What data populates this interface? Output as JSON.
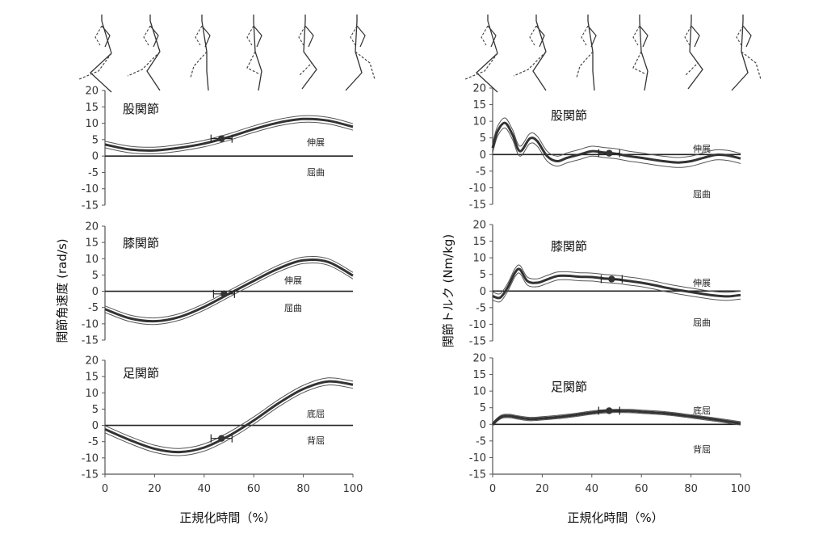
{
  "chart_data": [
    {
      "type": "line",
      "title": "股関節",
      "ylabel": "関節角速度 (rad/s)",
      "xlabel": "",
      "xlim": [
        0,
        100
      ],
      "ylim": [
        -15,
        20
      ],
      "yticks": [
        "20",
        "15",
        "10",
        "5",
        "0",
        "-5",
        "-10",
        "-15"
      ],
      "xticks": [],
      "annotations": [
        "伸展",
        "屈曲"
      ],
      "x": [
        0,
        10,
        20,
        30,
        40,
        50,
        60,
        70,
        80,
        90,
        100
      ],
      "series": [
        {
          "values": [
            3.5,
            2.0,
            1.7,
            2.5,
            3.8,
            5.8,
            8.2,
            10.2,
            11.3,
            10.8,
            8.9
          ]
        }
      ],
      "band": 1.0,
      "marker": {
        "x": 47,
        "y": 5.3
      }
    },
    {
      "type": "line",
      "title": "膝関節",
      "ylabel": "",
      "xlabel": "",
      "xlim": [
        0,
        100
      ],
      "ylim": [
        -15,
        20
      ],
      "yticks": [
        "20",
        "15",
        "10",
        "5",
        "0",
        "-5",
        "-10",
        "-15"
      ],
      "xticks": [],
      "annotations": [
        "伸展",
        "屈曲"
      ],
      "x": [
        0,
        10,
        20,
        30,
        40,
        50,
        60,
        70,
        80,
        90,
        100
      ],
      "series": [
        {
          "values": [
            -5.5,
            -8.3,
            -9.2,
            -7.9,
            -4.8,
            -0.8,
            3.2,
            7.0,
            9.5,
            9.0,
            4.8
          ]
        }
      ],
      "band": 1.0,
      "marker": {
        "x": 48,
        "y": -0.8
      }
    },
    {
      "type": "line",
      "title": "足関節",
      "ylabel": "",
      "xlabel": "正規化時間（%）",
      "xlim": [
        0,
        100
      ],
      "ylim": [
        -15,
        20
      ],
      "yticks": [
        "20",
        "15",
        "10",
        "5",
        "0",
        "-5",
        "-10",
        "-15"
      ],
      "xticks": [
        "0",
        "20",
        "40",
        "60",
        "80",
        "100"
      ],
      "annotations": [
        "底屈",
        "背屈"
      ],
      "x": [
        0,
        10,
        20,
        30,
        40,
        50,
        60,
        70,
        80,
        90,
        100
      ],
      "series": [
        {
          "values": [
            -1.2,
            -4.5,
            -7.2,
            -8.2,
            -6.8,
            -3.2,
            1.5,
            6.8,
            11.2,
            13.5,
            12.5
          ]
        }
      ],
      "band": 1.1,
      "marker": {
        "x": 47,
        "y": -4.0
      }
    },
    {
      "type": "line",
      "title": "股関節",
      "ylabel": "関節トルク (Nm/kg)",
      "xlabel": "",
      "xlim": [
        0,
        100
      ],
      "ylim": [
        -15,
        20
      ],
      "yticks": [
        "20",
        "15",
        "10",
        "5",
        "0",
        "-5",
        "-10",
        "-15"
      ],
      "xticks": [],
      "annotations": [
        "伸展",
        "屈曲"
      ],
      "x": [
        0,
        2,
        5,
        8,
        11,
        15,
        18,
        22,
        26,
        30,
        35,
        40,
        45,
        50,
        55,
        60,
        65,
        70,
        75,
        80,
        85,
        90,
        95,
        100
      ],
      "series": [
        {
          "values": [
            2.0,
            7.0,
            9.5,
            6.0,
            1.0,
            4.8,
            4.0,
            -0.5,
            -2.0,
            -1.0,
            0.0,
            1.0,
            0.6,
            0.2,
            -0.5,
            -1.0,
            -1.6,
            -2.1,
            -2.4,
            -2.0,
            -1.0,
            -0.1,
            -0.3,
            -1.2
          ]
        }
      ],
      "band": 1.5,
      "marker": {
        "x": 47,
        "y": 0.4
      }
    },
    {
      "type": "line",
      "title": "膝関節",
      "ylabel": "",
      "xlabel": "",
      "xlim": [
        0,
        100
      ],
      "ylim": [
        -15,
        20
      ],
      "yticks": [
        "20",
        "15",
        "10",
        "5",
        "0",
        "-5",
        "-10",
        "-15"
      ],
      "xticks": [],
      "annotations": [
        "伸展",
        "屈曲"
      ],
      "x": [
        0,
        3,
        6,
        9,
        11,
        14,
        18,
        22,
        26,
        30,
        35,
        40,
        45,
        50,
        55,
        60,
        65,
        70,
        75,
        80,
        85,
        90,
        95,
        100
      ],
      "series": [
        {
          "values": [
            -1.5,
            -2.0,
            1.0,
            5.5,
            6.5,
            3.0,
            2.5,
            3.5,
            4.5,
            4.6,
            4.3,
            4.2,
            3.8,
            3.5,
            3.0,
            2.5,
            1.8,
            1.0,
            0.3,
            -0.3,
            -0.9,
            -1.4,
            -1.6,
            -1.2
          ]
        }
      ],
      "band": 1.2,
      "marker": {
        "x": 48,
        "y": 3.6
      }
    },
    {
      "type": "line",
      "title": "足関節",
      "ylabel": "",
      "xlabel": "正規化時間（%）",
      "xlim": [
        0,
        100
      ],
      "ylim": [
        -15,
        20
      ],
      "yticks": [
        "20",
        "15",
        "10",
        "5",
        "0",
        "-5",
        "-10",
        "-15"
      ],
      "xticks": [
        "0",
        "20",
        "40",
        "60",
        "80",
        "100"
      ],
      "annotations": [
        "底屈",
        "背屈"
      ],
      "x": [
        0,
        2,
        4,
        7,
        10,
        15,
        20,
        30,
        40,
        47,
        55,
        60,
        70,
        80,
        90,
        100
      ],
      "series": [
        {
          "values": [
            0.0,
            1.5,
            2.4,
            2.5,
            2.1,
            1.6,
            1.8,
            2.5,
            3.5,
            4.0,
            4.0,
            3.8,
            3.3,
            2.4,
            1.4,
            0.3
          ]
        }
      ],
      "band": 0.5,
      "marker": {
        "x": 47,
        "y": 4.1
      }
    }
  ]
}
